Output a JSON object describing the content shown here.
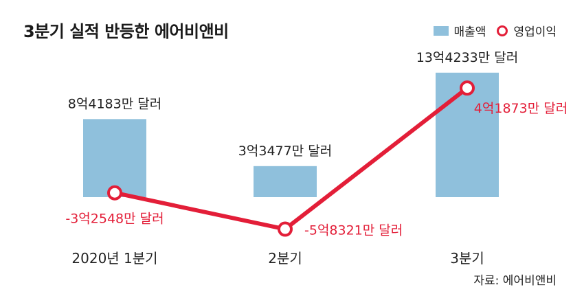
{
  "title": "3분기 실적 반등한 에어비앤비",
  "legend": {
    "revenue": "매출액",
    "operating": "영업이익"
  },
  "source": "자료: 에어비앤비",
  "colors": {
    "bar": "#8fc0dc",
    "line": "#e31e38",
    "text": "#222222"
  },
  "chart_data": {
    "type": "bar",
    "categories": [
      "2020년 1분기",
      "2분기",
      "3분기"
    ],
    "series": [
      {
        "name": "매출액",
        "type": "bar",
        "values": [
          841830,
          334770,
          1342330
        ],
        "labels": [
          "8억4183만 달러",
          "3억3477만 달러",
          "13억4233만 달러"
        ]
      },
      {
        "name": "영업이익",
        "type": "line",
        "values": [
          -325480,
          -583210,
          418730
        ],
        "labels": [
          "-3억2548만 달러",
          "-5억8321만 달러",
          "4억1873만 달러"
        ]
      }
    ],
    "unit": "만 달러",
    "grid": false,
    "legend_position": "top-right"
  }
}
